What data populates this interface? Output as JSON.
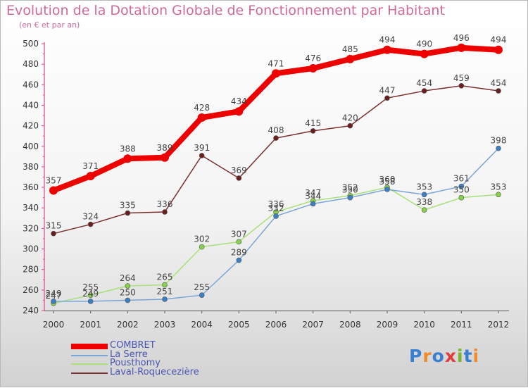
{
  "title": "Evolution de la Dotation Globale de Fonctionnement par Habitant",
  "subtitle": "(en € et par an)",
  "logo": {
    "text": "Proxiti",
    "colors": [
      "#3b7fd0",
      "#f08a2b",
      "#3b7fd0",
      "#e23d3d",
      "#7ab32e",
      "#3b7fd0",
      "#f08a2b"
    ]
  },
  "chart_data": {
    "type": "line",
    "x": [
      "2000",
      "2001",
      "2002",
      "2003",
      "2004",
      "2005",
      "2006",
      "2007",
      "2008",
      "2009",
      "2010",
      "2011",
      "2012"
    ],
    "ylim": [
      240,
      500
    ],
    "yticks": [
      240,
      260,
      280,
      300,
      320,
      340,
      360,
      380,
      400,
      420,
      440,
      460,
      480,
      500
    ],
    "grid": false,
    "legend_position": "bottom-left",
    "series": [
      {
        "name": "COMBRET",
        "color": "#ee0000",
        "width": 8,
        "marker_color": "#ee0000",
        "marker_r": 6,
        "values": [
          357,
          371,
          388,
          389,
          428,
          434,
          471,
          476,
          485,
          494,
          490,
          496,
          494
        ]
      },
      {
        "name": "La Serre",
        "color": "#7aa6d6",
        "width": 1.5,
        "marker_color": "#3b7fc4",
        "marker_r": 3.5,
        "values": [
          249,
          249,
          250,
          251,
          255,
          289,
          332,
          344,
          350,
          358,
          353,
          361,
          398
        ]
      },
      {
        "name": "Pousthomy",
        "color": "#a8e07a",
        "width": 1.5,
        "marker_color": "#86d24a",
        "marker_r": 3.5,
        "values": [
          247,
          255,
          264,
          265,
          302,
          307,
          336,
          347,
          352,
          360,
          338,
          350,
          353
        ]
      },
      {
        "name": "Laval-Roquecezière",
        "color": "#7a3030",
        "width": 1.5,
        "marker_color": "#6a1e1e",
        "marker_r": 3.5,
        "values": [
          315,
          324,
          335,
          336,
          391,
          369,
          408,
          415,
          420,
          447,
          454,
          459,
          454
        ]
      }
    ]
  }
}
